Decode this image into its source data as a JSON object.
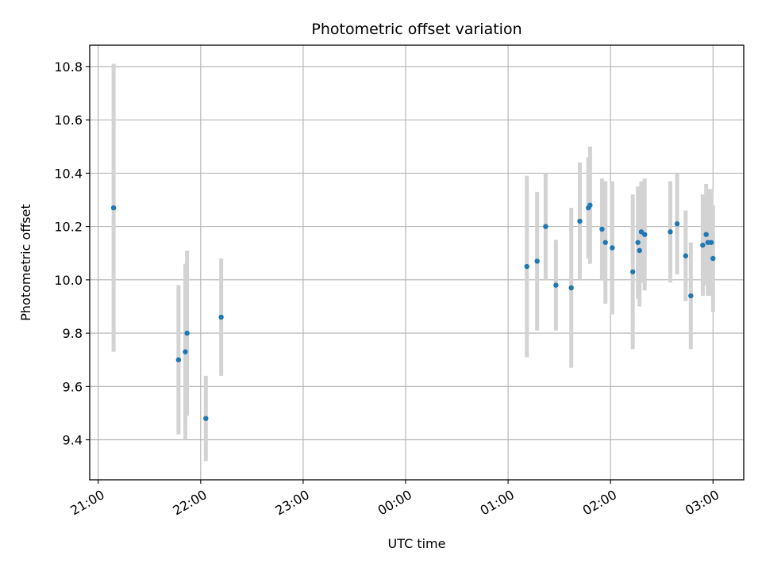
{
  "chart_data": {
    "type": "scatter",
    "title": "Photometric offset variation",
    "xlabel": "UTC time",
    "ylabel": "Photometric offset",
    "x_unit": "UTC time (day 1 = evening, day 2 = after midnight)",
    "xlim": [
      "20:55",
      "03:18"
    ],
    "ylim": [
      9.25,
      10.88
    ],
    "x_ticks": [
      "21:00",
      "22:00",
      "23:00",
      "00:00",
      "01:00",
      "02:00",
      "03:00"
    ],
    "y_ticks": [
      "9.4",
      "9.6",
      "9.8",
      "10.0",
      "10.2",
      "10.4",
      "10.6",
      "10.8"
    ],
    "grid": true,
    "marker_color": "#1f77b4",
    "errorbar_color": "#d3d3d3",
    "points": [
      {
        "t": "21:09",
        "y": 10.27,
        "err": 0.54
      },
      {
        "t": "21:47",
        "y": 9.7,
        "err": 0.28
      },
      {
        "t": "21:51",
        "y": 9.73,
        "err": 0.33
      },
      {
        "t": "21:52",
        "y": 9.8,
        "err": 0.31
      },
      {
        "t": "22:03",
        "y": 9.48,
        "err": 0.16
      },
      {
        "t": "22:12",
        "y": 9.86,
        "err": 0.22
      },
      {
        "t": "01:11",
        "y": 10.05,
        "err": 0.34
      },
      {
        "t": "01:17",
        "y": 10.07,
        "err": 0.26
      },
      {
        "t": "01:22",
        "y": 10.2,
        "err": 0.2
      },
      {
        "t": "01:28",
        "y": 9.98,
        "err": 0.17
      },
      {
        "t": "01:37",
        "y": 9.97,
        "err": 0.3
      },
      {
        "t": "01:42",
        "y": 10.22,
        "err": 0.22
      },
      {
        "t": "01:47",
        "y": 10.27,
        "err": 0.19
      },
      {
        "t": "01:48",
        "y": 10.28,
        "err": 0.22
      },
      {
        "t": "01:55",
        "y": 10.19,
        "err": 0.19
      },
      {
        "t": "01:57",
        "y": 10.14,
        "err": 0.23
      },
      {
        "t": "02:01",
        "y": 10.12,
        "err": 0.25
      },
      {
        "t": "02:13",
        "y": 10.03,
        "err": 0.29
      },
      {
        "t": "02:16",
        "y": 10.14,
        "err": 0.21
      },
      {
        "t": "02:17",
        "y": 10.11,
        "err": 0.21
      },
      {
        "t": "02:18",
        "y": 10.18,
        "err": 0.19
      },
      {
        "t": "02:20",
        "y": 10.17,
        "err": 0.21
      },
      {
        "t": "02:35",
        "y": 10.18,
        "err": 0.19
      },
      {
        "t": "02:39",
        "y": 10.21,
        "err": 0.19
      },
      {
        "t": "02:44",
        "y": 10.09,
        "err": 0.17
      },
      {
        "t": "02:47",
        "y": 9.94,
        "err": 0.2
      },
      {
        "t": "02:54",
        "y": 10.13,
        "err": 0.19
      },
      {
        "t": "02:56",
        "y": 10.17,
        "err": 0.19
      },
      {
        "t": "02:57",
        "y": 10.14,
        "err": 0.2
      },
      {
        "t": "02:59",
        "y": 10.14,
        "err": 0.2
      },
      {
        "t": "03:00",
        "y": 10.08,
        "err": 0.2
      }
    ]
  }
}
